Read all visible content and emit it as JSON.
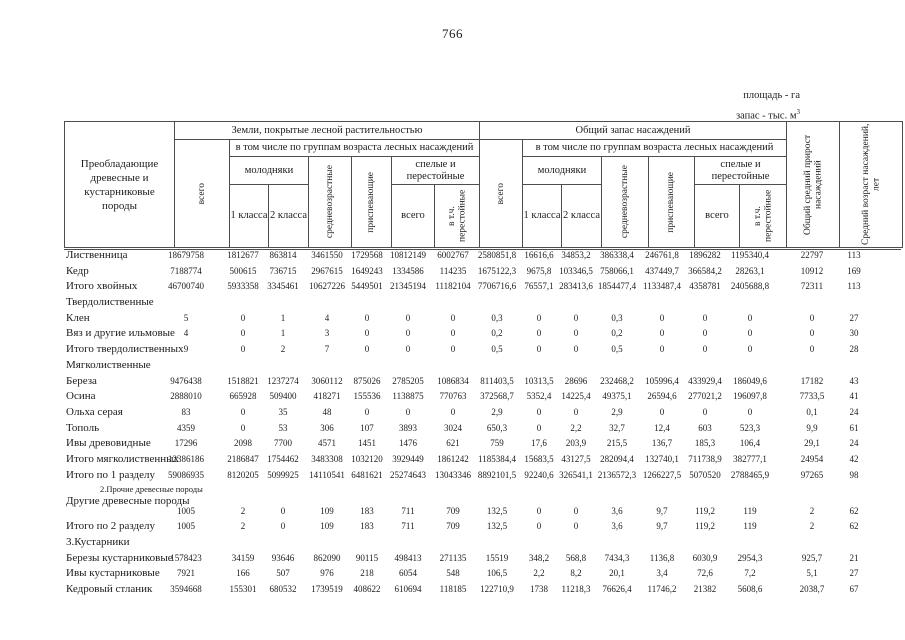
{
  "page": {
    "number": "766",
    "area_unit": "площадь - га",
    "stock_unit": "запас - тыс. м",
    "stock_unit_sup": "3"
  },
  "header": {
    "species": "Преобладающие древесные и кустарниковые породы",
    "land_group": "Земли, покрытые лесной растительностью",
    "stock_group": "Общий запас насаждений",
    "subgroup": "в том числе по группам возраста лесных насаждений",
    "total": "всего",
    "young": "молодняки",
    "class1": "1 класса",
    "class2": "2 класса",
    "middle": "средневозрастные",
    "maturing": "приспевающие",
    "mature_group": "спелые и перестойные",
    "mature_total": "всего",
    "overmature": "в т.ч. перестойные",
    "increment": "Общий средний прирост насаждений",
    "age": "Средний возраст насаждений, лет"
  },
  "table": {
    "rows": [
      {
        "name": "Лиственница",
        "type": "data",
        "values": [
          "18679758",
          "1812677",
          "863814",
          "3461550",
          "1729568",
          "10812149",
          "6002767",
          "2580851,8",
          "16616,6",
          "34853,2",
          "386338,4",
          "246761,8",
          "1896282",
          "1195340,4",
          "22797",
          "113"
        ]
      },
      {
        "name": "Кедр",
        "type": "data",
        "values": [
          "7188774",
          "500615",
          "736715",
          "2967615",
          "1649243",
          "1334586",
          "114235",
          "1675122,3",
          "9675,8",
          "103346,5",
          "758066,1",
          "437449,7",
          "366584,2",
          "28263,1",
          "10912",
          "169"
        ]
      },
      {
        "name": "Итого хвойных",
        "type": "data",
        "values": [
          "46700740",
          "5933358",
          "3345461",
          "10627226",
          "5449501",
          "21345194",
          "11182104",
          "7706716,6",
          "76557,1",
          "283413,6",
          "1854477,4",
          "1133487,4",
          "4358781",
          "2405688,8",
          "72311",
          "113"
        ]
      },
      {
        "name": "Твердолиственные",
        "type": "section",
        "values": []
      },
      {
        "name": "Клен",
        "type": "data",
        "values": [
          "5",
          "0",
          "1",
          "4",
          "0",
          "0",
          "0",
          "0,3",
          "0",
          "0",
          "0,3",
          "0",
          "0",
          "0",
          "0",
          "27"
        ]
      },
      {
        "name": "Вяз и другие ильмовые",
        "type": "data",
        "values": [
          "4",
          "0",
          "1",
          "3",
          "0",
          "0",
          "0",
          "0,2",
          "0",
          "0",
          "0,2",
          "0",
          "0",
          "0",
          "0",
          "30"
        ]
      },
      {
        "name": "Итого твердолиственных",
        "type": "data",
        "values": [
          "9",
          "0",
          "2",
          "7",
          "0",
          "0",
          "0",
          "0,5",
          "0",
          "0",
          "0,5",
          "0",
          "0",
          "0",
          "0",
          "28"
        ]
      },
      {
        "name": "Мягколиственные",
        "type": "section",
        "values": []
      },
      {
        "name": "Береза",
        "type": "data",
        "values": [
          "9476438",
          "1518821",
          "1237274",
          "3060112",
          "875026",
          "2785205",
          "1086834",
          "811403,5",
          "10313,5",
          "28696",
          "232468,2",
          "105996,4",
          "433929,4",
          "186049,6",
          "17182",
          "43"
        ]
      },
      {
        "name": "Осина",
        "type": "data",
        "values": [
          "2888010",
          "665928",
          "509400",
          "418271",
          "155536",
          "1138875",
          "770763",
          "372568,7",
          "5352,4",
          "14225,4",
          "49375,1",
          "26594,6",
          "277021,2",
          "196097,8",
          "7733,5",
          "41"
        ]
      },
      {
        "name": "Ольха серая",
        "type": "data",
        "values": [
          "83",
          "0",
          "35",
          "48",
          "0",
          "0",
          "0",
          "2,9",
          "0",
          "0",
          "2,9",
          "0",
          "0",
          "0",
          "0,1",
          "24"
        ]
      },
      {
        "name": "Тополь",
        "type": "data",
        "values": [
          "4359",
          "0",
          "53",
          "306",
          "107",
          "3893",
          "3024",
          "650,3",
          "0",
          "2,2",
          "32,7",
          "12,4",
          "603",
          "523,3",
          "9,9",
          "61"
        ]
      },
      {
        "name": "Ивы древовидные",
        "type": "data",
        "values": [
          "17296",
          "2098",
          "7700",
          "4571",
          "1451",
          "1476",
          "621",
          "759",
          "17,6",
          "203,9",
          "215,5",
          "136,7",
          "185,3",
          "106,4",
          "29,1",
          "24"
        ]
      },
      {
        "name": "Итого мягколиственных",
        "type": "data",
        "values": [
          "12386186",
          "2186847",
          "1754462",
          "3483308",
          "1032120",
          "3929449",
          "1861242",
          "1185384,4",
          "15683,5",
          "43127,5",
          "282094,4",
          "132740,1",
          "711738,9",
          "382777,1",
          "24954",
          "42"
        ]
      },
      {
        "name": "Итого по 1 разделу",
        "type": "data",
        "values": [
          "59086935",
          "8120205",
          "5099925",
          "14110541",
          "6481621",
          "25274643",
          "13043346",
          "8892101,5",
          "92240,6",
          "326541,1",
          "2136572,3",
          "1266227,5",
          "5070520",
          "2788465,9",
          "97265",
          "98"
        ]
      },
      {
        "name": "2.Прочие древесные породы",
        "type": "subsection",
        "values": []
      },
      {
        "name": "Другие древесные породы",
        "type": "offset",
        "values": [
          "1005",
          "2",
          "0",
          "109",
          "183",
          "711",
          "709",
          "132,5",
          "0",
          "0",
          "3,6",
          "9,7",
          "119,2",
          "119",
          "2",
          "62"
        ]
      },
      {
        "name": "Итого по 2 разделу",
        "type": "data",
        "values": [
          "1005",
          "2",
          "0",
          "109",
          "183",
          "711",
          "709",
          "132,5",
          "0",
          "0",
          "3,6",
          "9,7",
          "119,2",
          "119",
          "2",
          "62"
        ]
      },
      {
        "name": "3.Кустарники",
        "type": "section",
        "values": []
      },
      {
        "name": "Березы кустарниковые",
        "type": "data",
        "values": [
          "1578423",
          "34159",
          "93646",
          "862090",
          "90115",
          "498413",
          "271135",
          "15519",
          "348,2",
          "568,8",
          "7434,3",
          "1136,8",
          "6030,9",
          "2954,3",
          "925,7",
          "21"
        ]
      },
      {
        "name": "Ивы кустарниковые",
        "type": "data",
        "values": [
          "7921",
          "166",
          "507",
          "976",
          "218",
          "6054",
          "548",
          "106,5",
          "2,2",
          "8,2",
          "20,1",
          "3,4",
          "72,6",
          "7,2",
          "5,1",
          "27"
        ]
      },
      {
        "name": "Кедровый стланик",
        "type": "data",
        "values": [
          "3594668",
          "155301",
          "680532",
          "1739519",
          "408622",
          "610694",
          "118185",
          "122710,9",
          "1738",
          "11218,3",
          "76626,4",
          "11746,2",
          "21382",
          "5608,6",
          "2038,7",
          "67"
        ]
      }
    ]
  }
}
